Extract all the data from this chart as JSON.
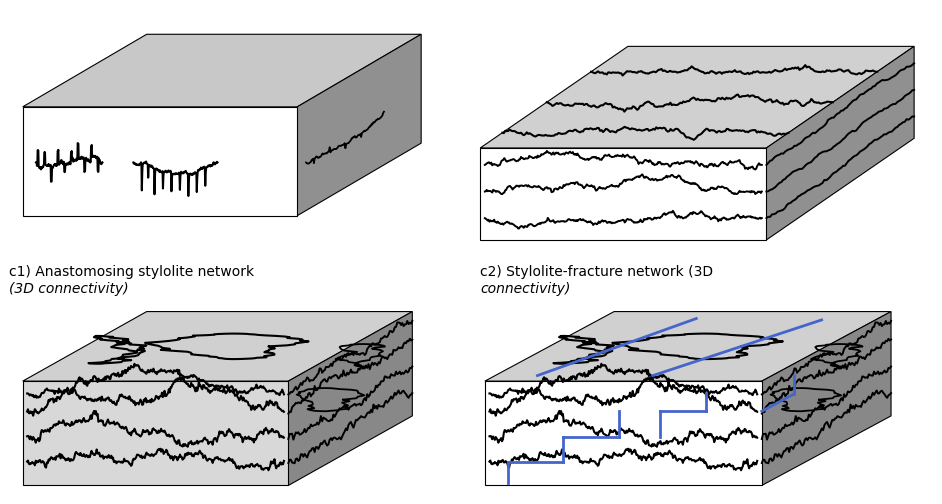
{
  "fig_width": 9.42,
  "fig_height": 5.04,
  "background_color": "#ffffff",
  "blue_color": "#4466cc",
  "font_size": 10,
  "label_c1_line1": "c1) Anastomosing stylolite network",
  "label_c1_line2": "(3D connectivity)",
  "label_c2_line1": "c2) Stylolite-fracture network (3D",
  "label_c2_line2": "connectivity)"
}
